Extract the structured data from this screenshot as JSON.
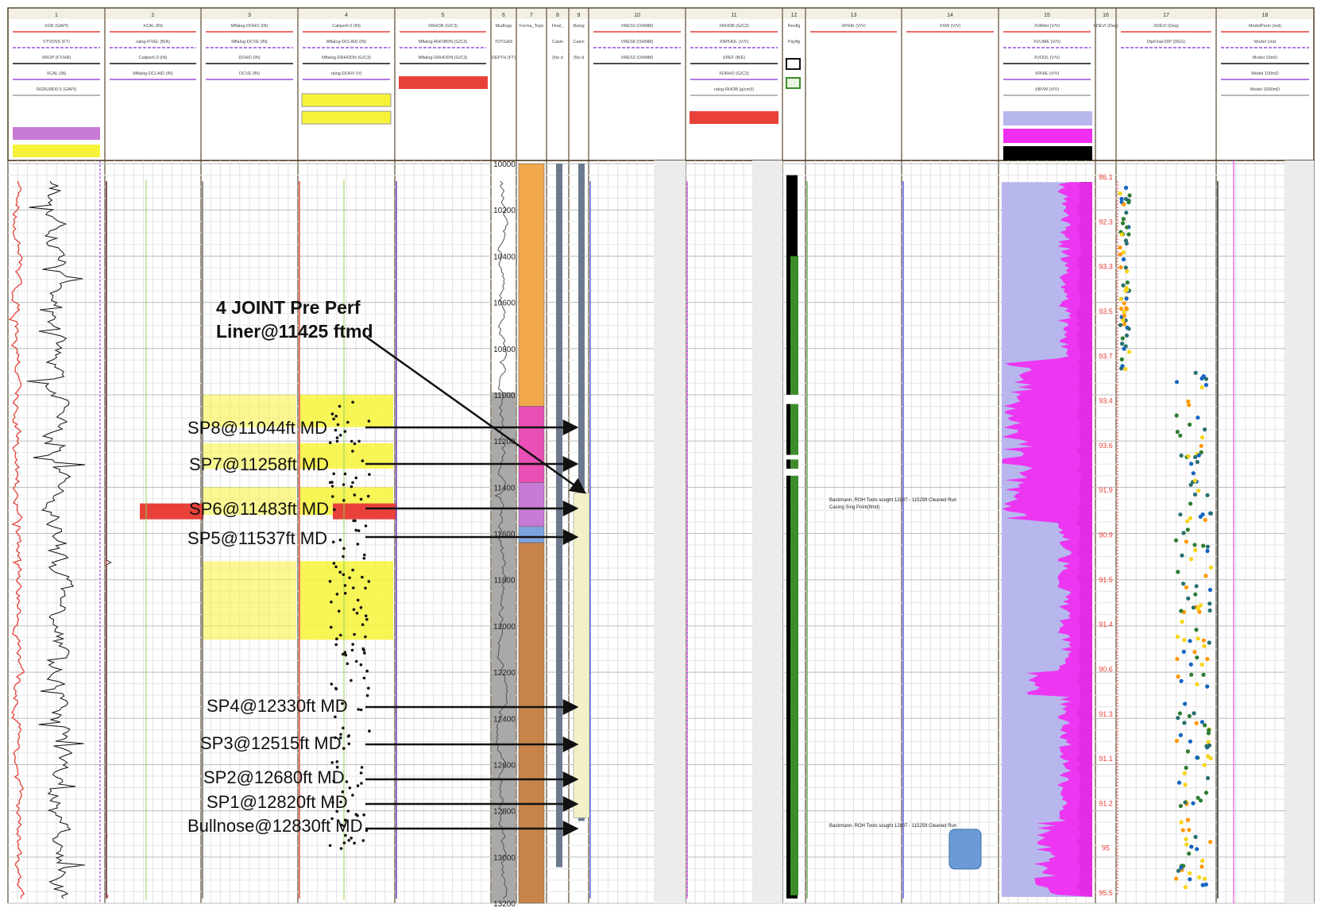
{
  "colors": {
    "gr": "#e8413a",
    "purple": "#9b4ddc",
    "black": "#111111",
    "green": "#3c8c2a",
    "lime": "#7cea4a",
    "blue": "#2a2ae8",
    "magenta": "#ef2ef0",
    "lavender": "#b7b7ee",
    "yellow": "#f7f33a",
    "orange": "#f2a94c",
    "brown": "#c88448",
    "pink": "#e94fb4",
    "violet": "#c77ad6",
    "gray": "#a0a0a0",
    "header_border": "#5b4a32"
  },
  "annotations": {
    "liner_line1": "4 JOINT Pre Perf",
    "liner_line2": "Liner@11425 ftmd",
    "sp8": "SP8@11044ft MD",
    "sp7": "SP7@11258ft MD",
    "sp6": "SP6@11483ft MD",
    "sp5": "SP5@11537ft MD",
    "sp4": "SP4@12330ft MD",
    "sp3": "SP3@12515ft MD",
    "sp2": "SP2@12680ft MD",
    "sp1": "SP1@12820ft MD",
    "bullnose": "Bullnose@12830ft MD"
  },
  "chart_data": {
    "type": "well-log",
    "depth_axis": {
      "unit": "ft",
      "range": [
        10000,
        13200
      ],
      "ticks": [
        10000,
        10200,
        10400,
        10600,
        10800,
        11000,
        11200,
        11400,
        11600,
        11800,
        12000,
        12200,
        12400,
        12600,
        12800,
        13000,
        13200
      ]
    },
    "tracks": [
      "1",
      "2",
      "3",
      "4",
      "5",
      "6",
      "7",
      "8",
      "9",
      "10",
      "11",
      "12",
      "13",
      "14",
      "15",
      "16",
      "17",
      "18"
    ],
    "track_headers": {
      "1": [
        "XGR (GAPI)",
        "VTVDSS (FT)",
        "XROP (FT/HR)",
        "XCAL (IN)",
        "RGRLWD0.5 (GAPI)"
      ],
      "2": [
        "XCAL (IN)",
        "ralog-iFVEL (B/A)",
        "Caliper6.0 (IN)",
        "Mflalog-DCLAID (IN)"
      ],
      "3": [
        "Mflalog-DOHO (IN)",
        "Mflalog-DCVE (IN)",
        "DOHO (IN)",
        "DCVE (IN)"
      ],
      "4": [
        "Caliper6.0 (IN)",
        "Mflalog-DCLAID (IN)",
        "Mflalog-DRHODN (G/C3)",
        "ralog-DOHV (V)"
      ],
      "5": [
        "XRHOB (G/C3)",
        "Mflalog-RHOBDN (G/C3)",
        "Mflalog-DRHODN (G/C3)"
      ],
      "6": [
        "Mudlogs",
        "TOTGAS",
        "DEPTH (FT)"
      ],
      "7": [
        "Forma_Tops"
      ],
      "8": [
        "Final_",
        "Casin",
        "(No d"
      ],
      "9": [
        "Ralog",
        "Casin",
        "(No d"
      ],
      "10": [
        "VRES0 (OHMM)",
        "VRES8 (OHMM)",
        "VRES3 (OHMM)"
      ],
      "11": [
        "XRHOB (G/C3)",
        "XNPHOL (V/V)",
        "XPEF (B/E)",
        "XDRHO (G/C3)",
        "ralog-RHOB (g/cm3)"
      ],
      "12": [
        "Resflg",
        "Payflg"
      ],
      "13": [
        "XPHIE (V/V)"
      ],
      "14": [
        "XSW (V/V)"
      ],
      "15": [
        "XVANH (V/V)",
        "XVLIME (V/V)",
        "XVDOL (V/V)",
        "XPHIE (V/V)",
        "XBVW (V/V)"
      ],
      "16": [
        "XDEVI (Deg)"
      ],
      "17": [
        "XDEVI (Deg)",
        "DipFinal-DIP (DEG)"
      ],
      "18": [
        "ModelPerm (md)",
        "Model 1md",
        "Model 10mD",
        "Model 100mD",
        "Model 1000mD"
      ]
    },
    "inclination_scale_deg": [
      "86.1",
      "92.3",
      "93.3",
      "93.5",
      "93.7",
      "93.4",
      "93.6",
      "91.9",
      "90.9",
      "91.5",
      "91.4",
      "90.6",
      "91.3",
      "91.1",
      "91.2",
      "95",
      "95.5"
    ],
    "liner": {
      "label": "4 JOINT Pre Perf Liner@11425 ftmd",
      "depth_ftmd": 11425
    },
    "swell_packers": [
      {
        "name": "SP8",
        "depth_ft_md": 11044
      },
      {
        "name": "SP7",
        "depth_ft_md": 11258
      },
      {
        "name": "SP6",
        "depth_ft_md": 11483
      },
      {
        "name": "SP5",
        "depth_ft_md": 11537
      },
      {
        "name": "SP4",
        "depth_ft_md": 12330
      },
      {
        "name": "SP3",
        "depth_ft_md": 12515
      },
      {
        "name": "SP2",
        "depth_ft_md": 12680
      },
      {
        "name": "SP1",
        "depth_ft_md": 12820
      },
      {
        "name": "Bullnose",
        "depth_ft_md": 12830
      }
    ],
    "formation_tops": [
      {
        "top": 10000,
        "base": 11050,
        "color": "orange"
      },
      {
        "top": 11050,
        "base": 11380,
        "color": "pink"
      },
      {
        "top": 11380,
        "base": 11570,
        "color": "violet"
      },
      {
        "top": 11570,
        "base": 11640,
        "color": "blue"
      },
      {
        "top": 11640,
        "base": 13200,
        "color": "brown"
      }
    ],
    "annotated_text": [
      "Backmann, ROH Tools sought 12807 - 11525ft Cleaned Run",
      "Casing Sing Point(ftmd)"
    ]
  }
}
